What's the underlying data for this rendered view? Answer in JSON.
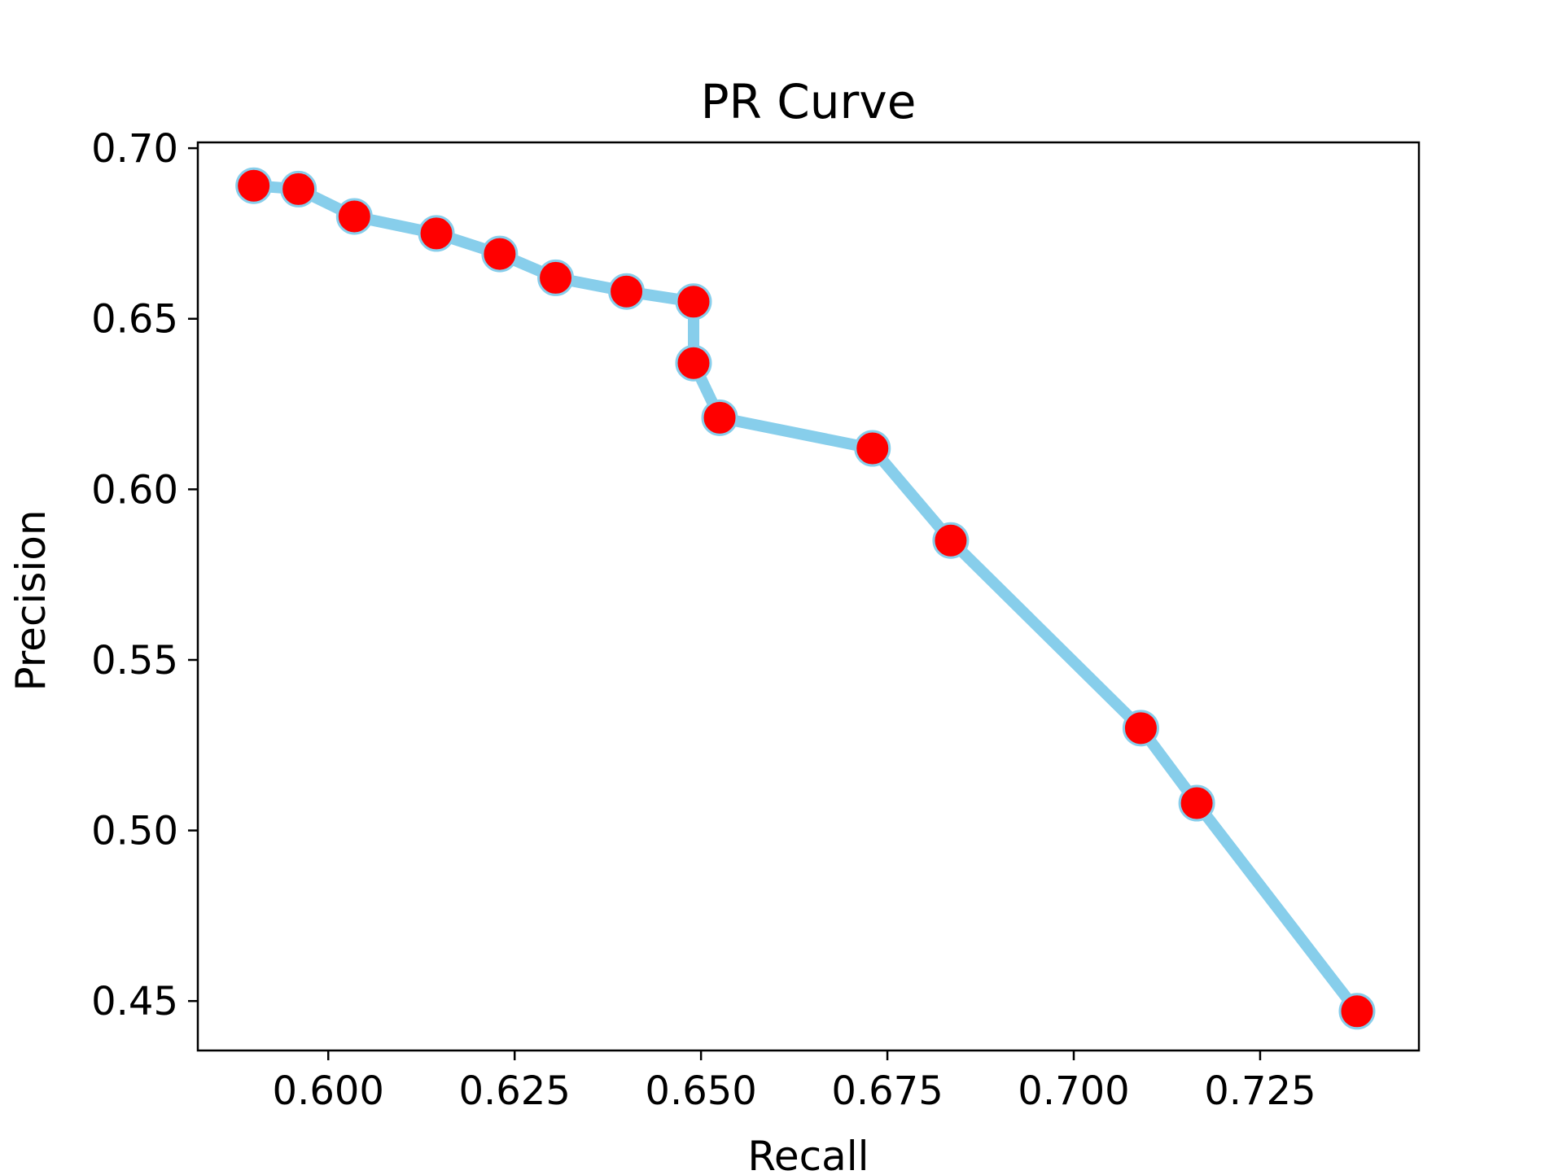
{
  "chart_data": {
    "type": "line",
    "title": "PR Curve",
    "xlabel": "Recall",
    "ylabel": "Precision",
    "xlim": [
      0.5825,
      0.7463
    ],
    "ylim": [
      0.4355,
      0.7017
    ],
    "xticks": [
      0.6,
      0.625,
      0.65,
      0.675,
      0.7,
      0.725
    ],
    "xtick_labels": [
      "0.600",
      "0.625",
      "0.650",
      "0.675",
      "0.700",
      "0.725"
    ],
    "yticks": [
      0.45,
      0.5,
      0.55,
      0.6,
      0.65,
      0.7
    ],
    "ytick_labels": [
      "0.45",
      "0.50",
      "0.55",
      "0.60",
      "0.65",
      "0.70"
    ],
    "grid": false,
    "line_color": "#87ceeb",
    "marker_color": "#ff0000",
    "series": [
      {
        "x": [
          0.59,
          0.596,
          0.6035,
          0.6145,
          0.623,
          0.6305,
          0.64,
          0.649,
          0.649,
          0.6525,
          0.673,
          0.6835,
          0.709,
          0.7165,
          0.738
        ],
        "y": [
          0.689,
          0.688,
          0.68,
          0.675,
          0.669,
          0.662,
          0.658,
          0.655,
          0.637,
          0.621,
          0.612,
          0.585,
          0.53,
          0.508,
          0.447
        ]
      }
    ]
  }
}
